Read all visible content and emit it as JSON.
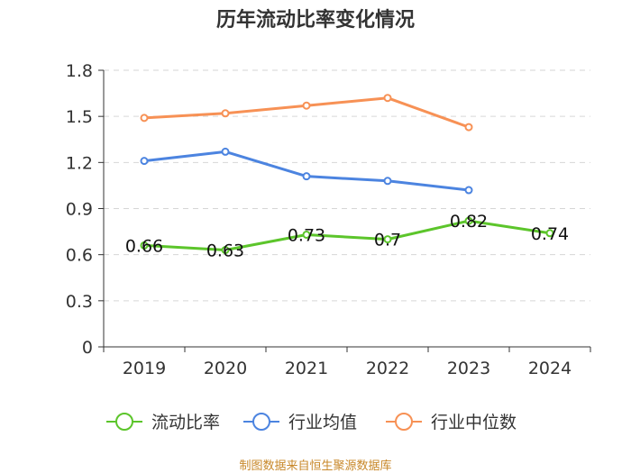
{
  "chart_data": {
    "type": "line",
    "title": "历年流动比率变化情况",
    "categories": [
      "2019",
      "2020",
      "2021",
      "2022",
      "2023",
      "2024"
    ],
    "ylim": [
      0,
      1.8
    ],
    "yticks": [
      "0",
      "0.3",
      "0.6",
      "0.9",
      "1.2",
      "1.5",
      "1.8"
    ],
    "grid": true,
    "legend_position": "bottom",
    "series": [
      {
        "name": "流动比率",
        "color": "#5cc52b",
        "values": [
          0.66,
          0.63,
          0.73,
          0.7,
          0.82,
          0.74
        ],
        "labels": [
          "0.66",
          "0.63",
          "0.73",
          "0.7",
          "0.82",
          "0.74"
        ]
      },
      {
        "name": "行业均值",
        "color": "#4c84e0",
        "values": [
          1.21,
          1.27,
          1.11,
          1.08,
          1.02,
          null
        ]
      },
      {
        "name": "行业中位数",
        "color": "#f79155",
        "values": [
          1.49,
          1.52,
          1.57,
          1.62,
          1.43,
          null
        ]
      }
    ]
  },
  "footer": {
    "source": "制图数据来自恒生聚源数据库"
  }
}
